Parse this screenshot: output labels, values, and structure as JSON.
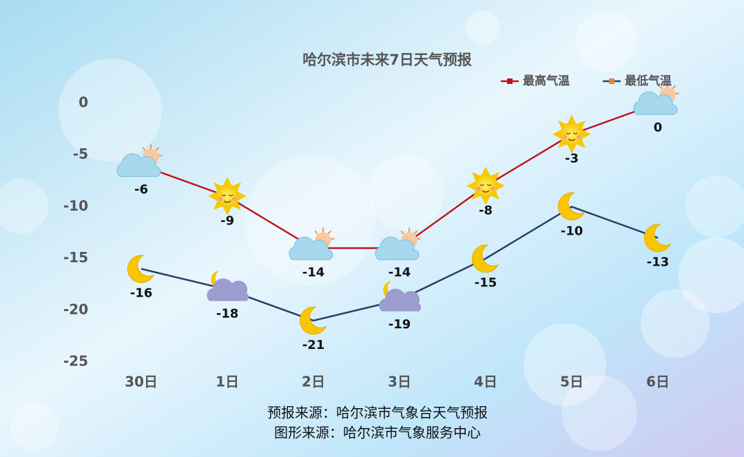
{
  "chart_data": {
    "type": "line",
    "title": "哈尔滨市未来7日天气预报",
    "categories": [
      "30日",
      "1日",
      "2日",
      "3日",
      "4日",
      "5日",
      "6日"
    ],
    "series": [
      {
        "name": "最高气温",
        "color": "#c0141c",
        "marker_color": "#c0141c",
        "values": [
          -6,
          -9,
          -14,
          -14,
          -8,
          -3,
          0
        ]
      },
      {
        "name": "最低气温",
        "color": "#2c3e63",
        "marker_color": "#e8833a",
        "values": [
          -16,
          -18,
          -21,
          -19,
          -15,
          -10,
          -13
        ]
      }
    ],
    "ylim": [
      -25,
      0
    ],
    "yticks": [
      0,
      -5,
      -10,
      -15,
      -20,
      -25
    ],
    "grid": false,
    "legend": "top-right",
    "footer": [
      "预报来源：哈尔滨市气象台天气预报",
      "图形来源：哈尔滨市气象服务中心"
    ]
  }
}
